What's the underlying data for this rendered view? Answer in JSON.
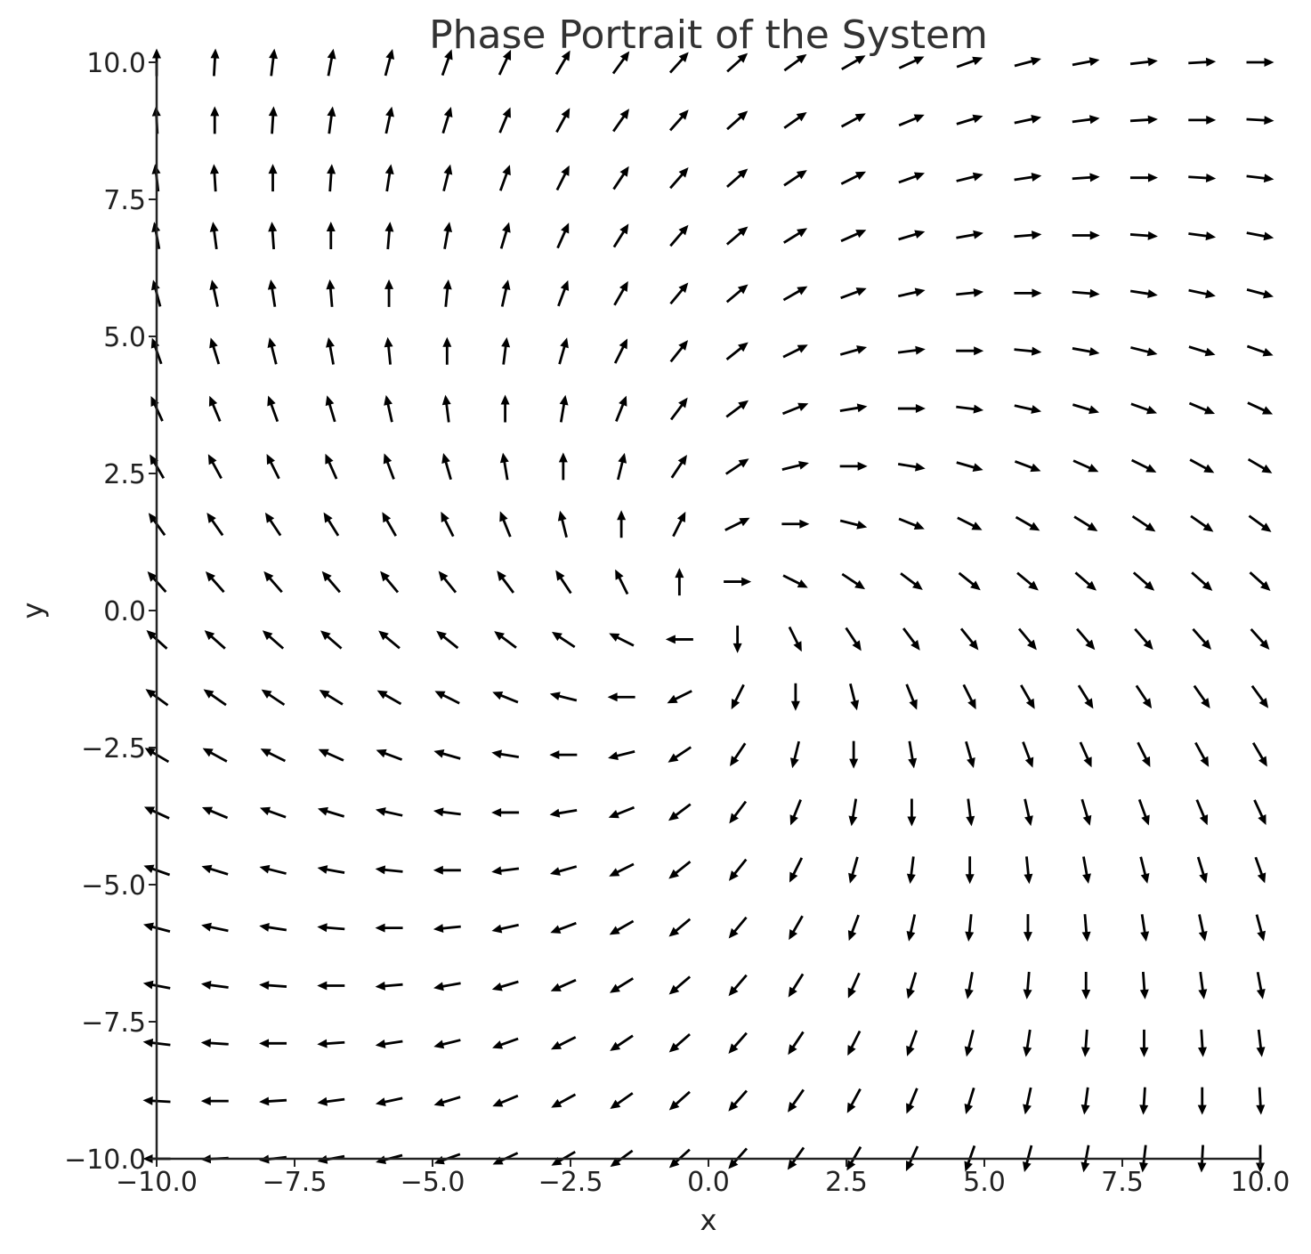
{
  "chart_data": {
    "type": "quiver",
    "title": "Phase Portrait of the System",
    "xlabel": "x",
    "ylabel": "y",
    "xlim": [
      -10,
      10
    ],
    "ylim": [
      -10,
      10
    ],
    "xticks": [
      -10,
      -7.5,
      -5,
      -2.5,
      0,
      2.5,
      5,
      7.5,
      10
    ],
    "yticks": [
      -10,
      -7.5,
      -5,
      -2.5,
      0,
      2.5,
      5,
      7.5,
      10
    ],
    "xtick_labels": [
      "−10.0",
      "−7.5",
      "−5.0",
      "−2.5",
      "0.0",
      "2.5",
      "5.0",
      "7.5",
      "10.0"
    ],
    "ytick_labels": [
      "−10.0",
      "−7.5",
      "−5.0",
      "−2.5",
      "0.0",
      "2.5",
      "5.0",
      "7.5",
      "10.0"
    ],
    "grid": false,
    "field": {
      "x_start": -10,
      "x_end": 10,
      "y_start": -10,
      "y_end": 10,
      "points_per_axis": 20,
      "dx": "x + y",
      "dy": "y - x",
      "normalized": true
    },
    "arrow_color": "#000000"
  }
}
